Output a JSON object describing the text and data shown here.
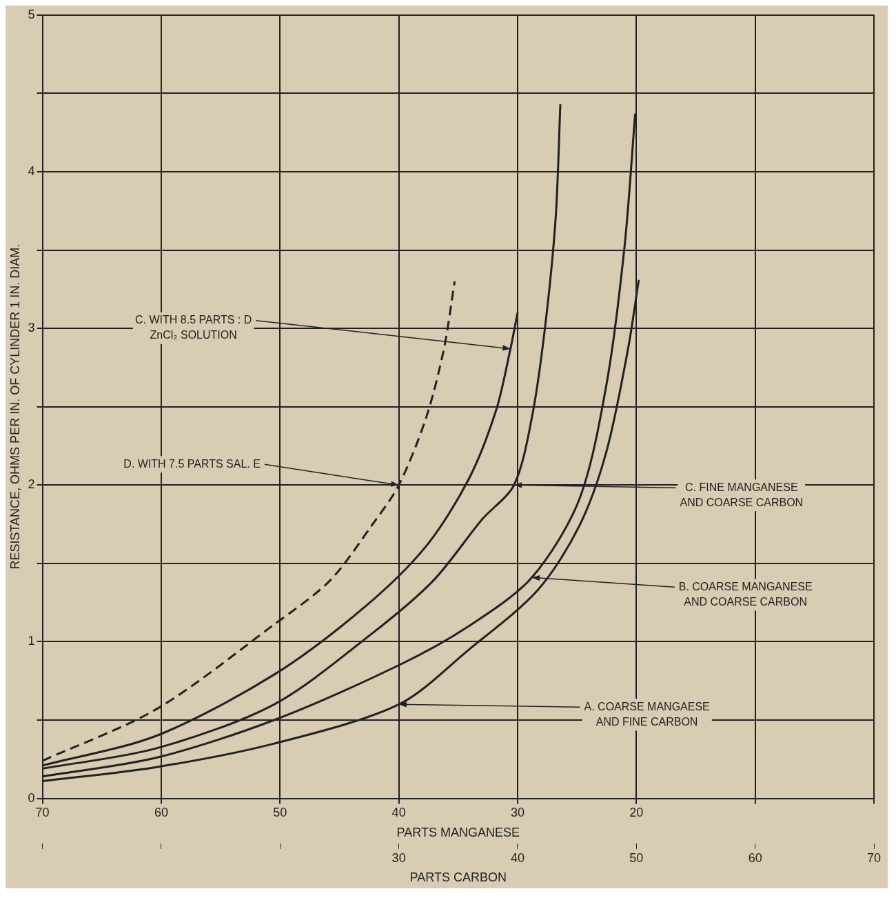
{
  "chart_data": {
    "type": "line",
    "ylabel": "RESISTANCE, OHMS PER IN. OF CYLINDER 1 IN. DIAM.",
    "xlabel": "PARTS MANGANESE",
    "x2label": "PARTS CARBON",
    "xlim": [
      70,
      0
    ],
    "xticks": [
      70,
      60,
      50,
      40,
      30,
      20,
      {
        "value": 10,
        "label": null
      },
      {
        "value": 0,
        "label": null
      }
    ],
    "x2lim": [
      0,
      70
    ],
    "x2ticks": [
      {
        "value": 0,
        "label": null
      },
      {
        "value": 10,
        "label": null
      },
      {
        "value": 20,
        "label": null
      },
      30,
      40,
      50,
      60,
      70
    ],
    "ylim": [
      0,
      5
    ],
    "yticks": [
      0,
      {
        "value": 0.5,
        "label": null
      },
      1,
      {
        "value": 1.5,
        "label": null
      },
      2,
      {
        "value": 2.5,
        "label": null
      },
      3,
      {
        "value": 3.5,
        "label": null
      },
      4,
      {
        "value": 4.5,
        "label": null
      },
      5
    ],
    "grid": true,
    "legend": false,
    "marker": "none",
    "series": [
      {
        "color": "#222222",
        "line_style": "dashed",
        "x": [
          70,
          60.4,
          50.5,
          45.8,
          42.3,
          40,
          37.7,
          36.2,
          35.3
        ],
        "values": [
          0.24,
          0.57,
          1.11,
          1.39,
          1.74,
          2.0,
          2.43,
          2.87,
          3.3
        ]
      },
      {
        "color": "#222222",
        "line_style": "solid",
        "x": [
          70,
          60.4,
          50.5,
          42.9,
          37.7,
          34.1,
          31.8,
          30.6,
          30
        ],
        "values": [
          0.21,
          0.4,
          0.79,
          1.22,
          1.61,
          2.04,
          2.48,
          2.87,
          3.1
        ]
      },
      {
        "color": "#222222",
        "line_style": "solid",
        "x": [
          70,
          60.4,
          50.5,
          42.3,
          37.1,
          33,
          30.3,
          28.8,
          27.7,
          26.8,
          26.4
        ],
        "values": [
          0.19,
          0.32,
          0.6,
          1.05,
          1.39,
          1.78,
          2.0,
          2.43,
          3.0,
          3.7,
          4.43
        ]
      },
      {
        "color": "#222222",
        "line_style": "solid",
        "x": [
          70,
          60.4,
          50.5,
          40,
          34.1,
          28.8,
          24.8,
          22.5,
          21,
          20.1
        ],
        "values": [
          0.14,
          0.26,
          0.5,
          0.85,
          1.1,
          1.41,
          1.91,
          2.65,
          3.52,
          4.37
        ]
      },
      {
        "color": "#222222",
        "line_style": "solid",
        "x": [
          70,
          60.4,
          50.5,
          40,
          34.1,
          28.3,
          24.8,
          22.5,
          20.7,
          19.8
        ],
        "values": [
          0.11,
          0.2,
          0.35,
          0.6,
          0.95,
          1.33,
          1.74,
          2.22,
          2.87,
          3.31
        ]
      }
    ],
    "annotations": [
      {
        "text": "C. WITH 8.5 PARTS : D\nZnCl₂ SOLUTION",
        "x": 30.6,
        "y": 2.87
      },
      {
        "text": "D. WITH 7.5 PARTS SAL. E",
        "x": 40,
        "y": 2.0
      },
      {
        "text": "C. FINE MANGANESE\nAND COARSE CARBON",
        "x": 30.3,
        "y": 2.0
      },
      {
        "text": "B. COARSE MANGANESE\nAND COARSE CARBON",
        "x": 28.8,
        "y": 1.41
      },
      {
        "text": "A. COARSE MANGAESE\nAND FINE CARBON",
        "x": 40,
        "y": 0.6
      }
    ]
  }
}
